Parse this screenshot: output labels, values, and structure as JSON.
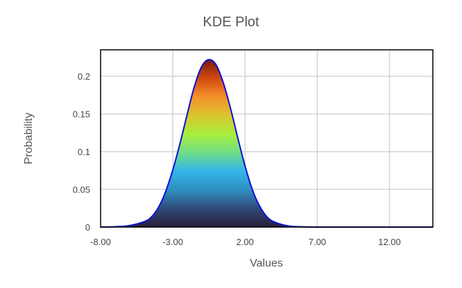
{
  "chart_data": {
    "type": "area",
    "title": "KDE Plot",
    "xlabel": "Values",
    "ylabel": "Probability",
    "xlim": [
      -8,
      15
    ],
    "ylim": [
      0,
      0.235
    ],
    "x_ticks": [
      "-8.00",
      "-3.00",
      "2.00",
      "7.00",
      "12.00"
    ],
    "y_ticks": [
      "0",
      "0.05",
      "0.1",
      "0.15",
      "0.2"
    ],
    "grid": true,
    "legend": "none",
    "series": [
      {
        "x": [
          -8,
          -7,
          -6,
          -5,
          -4.5,
          -4,
          -3.5,
          -3,
          -2.5,
          -2,
          -1.5,
          -1,
          -0.5,
          0,
          0.5,
          1,
          1.5,
          2,
          2.5,
          3,
          3.5,
          4,
          5,
          6,
          7,
          8,
          10,
          12,
          15
        ],
        "y": [
          0,
          0.0005,
          0.002,
          0.007,
          0.013,
          0.026,
          0.047,
          0.076,
          0.111,
          0.15,
          0.187,
          0.213,
          0.222,
          0.215,
          0.191,
          0.157,
          0.118,
          0.081,
          0.05,
          0.028,
          0.014,
          0.007,
          0.0015,
          0.0003,
          0,
          0,
          0,
          0,
          0
        ]
      }
    ],
    "colors": {
      "line": "#0a10d8",
      "gradient": [
        "#2b1c3a",
        "#2f4a7a",
        "#2f8fc0",
        "#35b5e8",
        "#6fdc88",
        "#a8f03c",
        "#d9c42e",
        "#f5902a",
        "#d04a10",
        "#7a1a08"
      ]
    }
  }
}
